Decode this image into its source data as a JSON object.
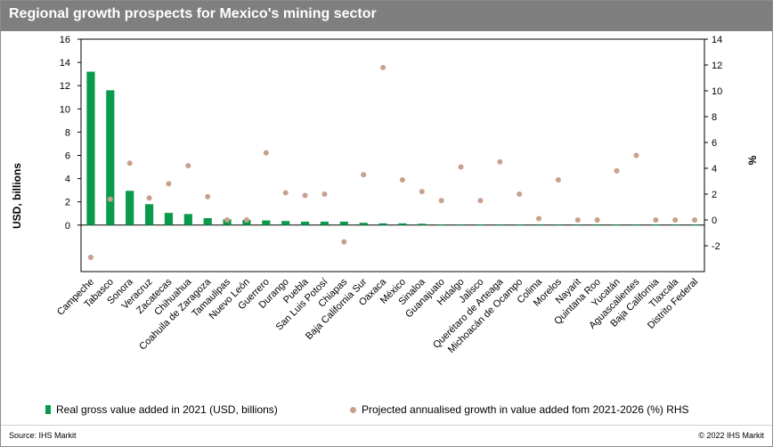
{
  "title": "Regional growth prospects for Mexico's mining sector",
  "source": "Source: IHS Markit",
  "copyright": "© 2022 IHS Markit",
  "colors": {
    "bar": "#0a9a4b",
    "dot": "#c8a08c",
    "title_bg": "#7f7f7f"
  },
  "chart_data": {
    "type": "bar",
    "categories": [
      "Campeche",
      "Tabasco",
      "Sonora",
      "Veracruz",
      "Zacatecas",
      "Chihuahua",
      "Coahuila de Zaragoza",
      "Tamaulipas",
      "Nuevo León",
      "Guerrero",
      "Durango",
      "Puebla",
      "San Luis Potosí",
      "Chiapas",
      "Baja California Sur",
      "Oaxaca",
      "México",
      "Sinaloa",
      "Guanajuato",
      "Hidalgo",
      "Jalisco",
      "Querétaro de Arteaga",
      "Michoacán de Ocampo",
      "Colima",
      "Morelos",
      "Nayarit",
      "Quintana Roo",
      "Yucatán",
      "Aguascalientes",
      "Baja California",
      "Tlaxcala",
      "Distrito Federal"
    ],
    "series": [
      {
        "name": "Real gross value added in 2021 (USD, billions)",
        "type": "bar",
        "axis": "left",
        "values": [
          13.2,
          11.6,
          2.95,
          1.8,
          1.05,
          0.95,
          0.6,
          0.5,
          0.45,
          0.4,
          0.35,
          0.3,
          0.3,
          0.3,
          0.2,
          0.15,
          0.15,
          0.12,
          0.05,
          0.05,
          0.05,
          0.05,
          0.05,
          0.05,
          0.05,
          0.05,
          0.05,
          0.05,
          0.05,
          0.05,
          0.05,
          0.05
        ]
      },
      {
        "name": "Projected annualised growth in value added fom 2021-2026 (%) RHS",
        "type": "scatter",
        "axis": "right",
        "values": [
          -2.9,
          1.6,
          4.4,
          1.7,
          2.8,
          4.2,
          1.8,
          0.0,
          0.0,
          5.2,
          2.1,
          1.9,
          2.0,
          -1.7,
          3.5,
          11.8,
          3.1,
          2.2,
          1.5,
          4.1,
          1.5,
          4.5,
          2.0,
          0.1,
          3.1,
          0.0,
          0.0,
          3.8,
          5.0,
          0.0,
          0.0,
          0.0
        ]
      }
    ],
    "yaxis_left": {
      "title": "USD, billions",
      "min": -4,
      "max": 16,
      "ticks": [
        0,
        2,
        4,
        6,
        8,
        10,
        12,
        14,
        16
      ]
    },
    "yaxis_right": {
      "title": "%",
      "min": -4,
      "max": 14,
      "ticks": [
        -2,
        0,
        2,
        4,
        6,
        8,
        10,
        12,
        14
      ]
    },
    "grid": false,
    "legend_position": "bottom"
  }
}
